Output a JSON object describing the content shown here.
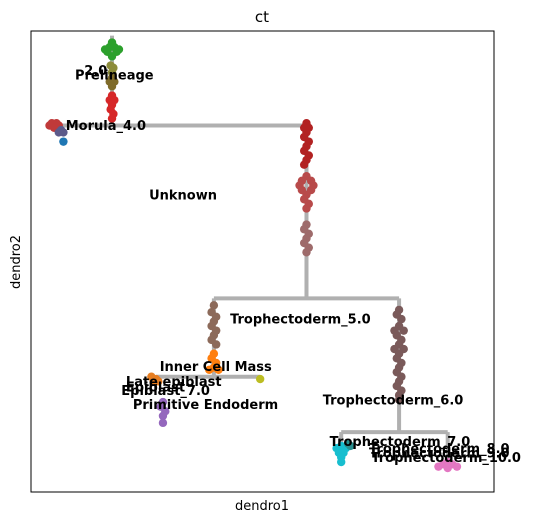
{
  "chart_data": {
    "type": "scatter",
    "title": "ct",
    "xlabel": "dendro1",
    "ylabel": "dendro2",
    "xticks": [],
    "yticks": [],
    "grid": false,
    "legend": "none",
    "branch_color": "#b0b0b0",
    "labels": [
      {
        "text": "Prelineage",
        "x": 0.095,
        "y": 0.895
      },
      {
        "text": "2.0",
        "x": 0.115,
        "y": 0.905
      },
      {
        "text": "Morula_4.0",
        "x": 0.075,
        "y": 0.785
      },
      {
        "text": "Unknown",
        "x": 0.255,
        "y": 0.635
      },
      {
        "text": "Trophectoderm_5.0",
        "x": 0.43,
        "y": 0.365
      },
      {
        "text": "Inner Cell Mass",
        "x": 0.278,
        "y": 0.262
      },
      {
        "text": "Late epiblast",
        "x": 0.205,
        "y": 0.23
      },
      {
        "text": "Epiblast",
        "x": 0.205,
        "y": 0.218
      },
      {
        "text": "Epiblast_7.0",
        "x": 0.195,
        "y": 0.21
      },
      {
        "text": "Primitive Endoderm",
        "x": 0.22,
        "y": 0.18
      },
      {
        "text": "Trophectoderm_6.0",
        "x": 0.63,
        "y": 0.19
      },
      {
        "text": "Trophectoderm_7.0",
        "x": 0.645,
        "y": 0.1
      },
      {
        "text": "Trophectoderm_8.0",
        "x": 0.73,
        "y": 0.085
      },
      {
        "text": "Trophectoderm_9.0",
        "x": 0.73,
        "y": 0.075
      },
      {
        "text": "Trophectoderm_10.0",
        "x": 0.735,
        "y": 0.065
      }
    ],
    "series": [
      {
        "color": "#2ca02c",
        "points": [
          [
            0.175,
            0.975
          ],
          [
            0.17,
            0.965
          ],
          [
            0.18,
            0.965
          ],
          [
            0.165,
            0.955
          ],
          [
            0.185,
            0.955
          ],
          [
            0.175,
            0.945
          ],
          [
            0.16,
            0.96
          ],
          [
            0.19,
            0.96
          ]
        ]
      },
      {
        "color": "#8c8c3a",
        "points": [
          [
            0.172,
            0.925
          ],
          [
            0.178,
            0.92
          ],
          [
            0.175,
            0.91
          ]
        ]
      },
      {
        "color": "#7f6b2a",
        "points": [
          [
            0.175,
            0.898
          ],
          [
            0.17,
            0.89
          ],
          [
            0.18,
            0.89
          ],
          [
            0.175,
            0.88
          ]
        ]
      },
      {
        "color": "#d62728",
        "points": [
          [
            0.175,
            0.86
          ],
          [
            0.17,
            0.85
          ],
          [
            0.18,
            0.85
          ],
          [
            0.175,
            0.84
          ],
          [
            0.172,
            0.83
          ],
          [
            0.178,
            0.82
          ],
          [
            0.175,
            0.81
          ]
        ]
      },
      {
        "color": "#c03a3a",
        "points": [
          [
            0.045,
            0.8
          ],
          [
            0.055,
            0.8
          ],
          [
            0.05,
            0.79
          ],
          [
            0.06,
            0.795
          ],
          [
            0.04,
            0.795
          ]
        ]
      },
      {
        "color": "#5c5a8a",
        "points": [
          [
            0.065,
            0.785
          ],
          [
            0.06,
            0.78
          ],
          [
            0.07,
            0.78
          ]
        ]
      },
      {
        "color": "#1f77b4",
        "points": [
          [
            0.07,
            0.76
          ]
        ]
      },
      {
        "color": "#b22222",
        "points": [
          [
            0.595,
            0.8
          ],
          [
            0.59,
            0.79
          ],
          [
            0.6,
            0.79
          ],
          [
            0.595,
            0.78
          ],
          [
            0.59,
            0.77
          ],
          [
            0.6,
            0.76
          ],
          [
            0.595,
            0.75
          ],
          [
            0.59,
            0.74
          ],
          [
            0.6,
            0.73
          ],
          [
            0.595,
            0.72
          ],
          [
            0.59,
            0.71
          ]
        ]
      },
      {
        "color": "#b84a4a",
        "points": [
          [
            0.595,
            0.685
          ],
          [
            0.585,
            0.675
          ],
          [
            0.605,
            0.675
          ],
          [
            0.58,
            0.665
          ],
          [
            0.61,
            0.665
          ],
          [
            0.585,
            0.655
          ],
          [
            0.605,
            0.655
          ],
          [
            0.595,
            0.645
          ],
          [
            0.59,
            0.635
          ],
          [
            0.6,
            0.625
          ],
          [
            0.595,
            0.615
          ]
        ]
      },
      {
        "color": "#9e6b6b",
        "points": [
          [
            0.595,
            0.58
          ],
          [
            0.59,
            0.57
          ],
          [
            0.6,
            0.56
          ],
          [
            0.595,
            0.55
          ],
          [
            0.59,
            0.54
          ],
          [
            0.6,
            0.53
          ],
          [
            0.595,
            0.52
          ]
        ]
      },
      {
        "color": "#8c6a5a",
        "points": [
          [
            0.395,
            0.405
          ],
          [
            0.39,
            0.39
          ],
          [
            0.4,
            0.38
          ],
          [
            0.395,
            0.37
          ],
          [
            0.39,
            0.36
          ],
          [
            0.4,
            0.35
          ],
          [
            0.395,
            0.34
          ],
          [
            0.39,
            0.33
          ],
          [
            0.4,
            0.32
          ]
        ]
      },
      {
        "color": "#ff7f0e",
        "points": [
          [
            0.395,
            0.3
          ],
          [
            0.39,
            0.29
          ],
          [
            0.4,
            0.28
          ],
          [
            0.395,
            0.27
          ],
          [
            0.385,
            0.265
          ],
          [
            0.405,
            0.265
          ]
        ]
      },
      {
        "color": "#bcbd22",
        "points": [
          [
            0.495,
            0.245
          ]
        ]
      },
      {
        "color": "#e67e22",
        "points": [
          [
            0.27,
            0.245
          ],
          [
            0.265,
            0.24
          ],
          [
            0.275,
            0.24
          ],
          [
            0.26,
            0.25
          ]
        ]
      },
      {
        "color": "#9467bd",
        "points": [
          [
            0.285,
            0.195
          ],
          [
            0.28,
            0.185
          ],
          [
            0.29,
            0.175
          ],
          [
            0.285,
            0.165
          ],
          [
            0.285,
            0.15
          ]
        ]
      },
      {
        "color": "#7a5a5a",
        "points": [
          [
            0.795,
            0.395
          ],
          [
            0.79,
            0.385
          ],
          [
            0.8,
            0.375
          ],
          [
            0.795,
            0.36
          ],
          [
            0.785,
            0.35
          ],
          [
            0.805,
            0.35
          ],
          [
            0.79,
            0.34
          ],
          [
            0.8,
            0.33
          ],
          [
            0.795,
            0.32
          ],
          [
            0.785,
            0.31
          ],
          [
            0.805,
            0.31
          ],
          [
            0.795,
            0.3
          ],
          [
            0.79,
            0.29
          ],
          [
            0.8,
            0.28
          ],
          [
            0.795,
            0.27
          ],
          [
            0.79,
            0.26
          ],
          [
            0.8,
            0.25
          ],
          [
            0.795,
            0.24
          ],
          [
            0.79,
            0.23
          ],
          [
            0.8,
            0.22
          ],
          [
            0.795,
            0.21
          ],
          [
            0.795,
            0.2
          ]
        ]
      },
      {
        "color": "#17becf",
        "points": [
          [
            0.67,
            0.1
          ],
          [
            0.66,
            0.095
          ],
          [
            0.68,
            0.095
          ],
          [
            0.665,
            0.085
          ],
          [
            0.675,
            0.085
          ],
          [
            0.67,
            0.075
          ],
          [
            0.67,
            0.065
          ]
        ]
      },
      {
        "color": "#2a8f8f",
        "points": [
          [
            0.685,
            0.105
          ],
          [
            0.69,
            0.1
          ]
        ]
      },
      {
        "color": "#e377c2",
        "points": [
          [
            0.9,
            0.065
          ],
          [
            0.89,
            0.06
          ],
          [
            0.91,
            0.06
          ],
          [
            0.88,
            0.055
          ],
          [
            0.92,
            0.055
          ],
          [
            0.9,
            0.052
          ]
        ]
      }
    ],
    "branches": [
      [
        [
          0.175,
          0.99
        ],
        [
          0.175,
          0.8
        ]
      ],
      [
        [
          0.045,
          0.795
        ],
        [
          0.595,
          0.795
        ]
      ],
      [
        [
          0.595,
          0.795
        ],
        [
          0.595,
          0.42
        ]
      ],
      [
        [
          0.395,
          0.42
        ],
        [
          0.795,
          0.42
        ]
      ],
      [
        [
          0.395,
          0.42
        ],
        [
          0.395,
          0.25
        ]
      ],
      [
        [
          0.27,
          0.25
        ],
        [
          0.495,
          0.25
        ]
      ],
      [
        [
          0.795,
          0.42
        ],
        [
          0.795,
          0.13
        ]
      ],
      [
        [
          0.67,
          0.13
        ],
        [
          0.9,
          0.13
        ]
      ],
      [
        [
          0.67,
          0.13
        ],
        [
          0.67,
          0.07
        ]
      ],
      [
        [
          0.9,
          0.13
        ],
        [
          0.9,
          0.055
        ]
      ]
    ]
  }
}
